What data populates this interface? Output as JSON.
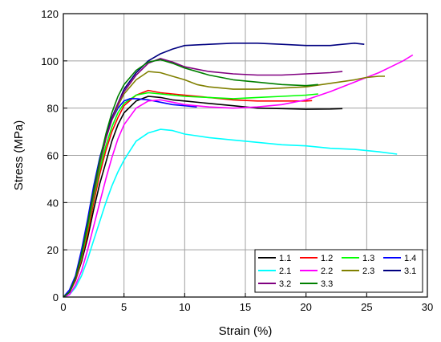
{
  "chart_data": {
    "type": "line",
    "title": "",
    "xlabel": "Strain (%)",
    "ylabel": "Stress (MPa)",
    "xlim": [
      0,
      30
    ],
    "ylim": [
      0,
      120
    ],
    "xticks": [
      0,
      5,
      10,
      15,
      20,
      25,
      30
    ],
    "yticks": [
      0,
      20,
      40,
      60,
      80,
      100,
      120
    ],
    "grid": true,
    "legend_position": "bottom-right",
    "series": [
      {
        "name": "1.1",
        "color": "#000000",
        "points": [
          [
            0,
            0
          ],
          [
            0.5,
            2
          ],
          [
            1,
            7
          ],
          [
            1.5,
            15
          ],
          [
            2,
            25
          ],
          [
            2.5,
            37
          ],
          [
            3,
            48
          ],
          [
            3.5,
            57
          ],
          [
            4,
            66
          ],
          [
            4.5,
            73
          ],
          [
            5,
            78
          ],
          [
            6,
            83
          ],
          [
            7,
            85
          ],
          [
            8,
            84.5
          ],
          [
            9,
            83.5
          ],
          [
            10,
            83
          ],
          [
            12,
            82
          ],
          [
            14,
            81
          ],
          [
            16,
            80
          ],
          [
            18,
            79.8
          ],
          [
            20,
            79.5
          ],
          [
            22,
            79.6
          ],
          [
            23,
            79.8
          ]
        ]
      },
      {
        "name": "1.2",
        "color": "#ff0000",
        "points": [
          [
            0,
            0
          ],
          [
            0.5,
            2
          ],
          [
            1,
            7
          ],
          [
            1.5,
            16
          ],
          [
            2,
            27
          ],
          [
            2.5,
            40
          ],
          [
            3,
            52
          ],
          [
            3.5,
            62
          ],
          [
            4,
            70
          ],
          [
            4.5,
            76
          ],
          [
            5,
            81
          ],
          [
            6,
            85.5
          ],
          [
            7,
            87.5
          ],
          [
            8,
            86.5
          ],
          [
            9,
            86
          ],
          [
            10,
            85.5
          ],
          [
            12,
            84.5
          ],
          [
            14,
            83.5
          ],
          [
            16,
            83
          ],
          [
            18,
            83
          ],
          [
            20,
            83
          ],
          [
            20.5,
            83.2
          ]
        ]
      },
      {
        "name": "1.3",
        "color": "#00ff00",
        "points": [
          [
            0,
            0
          ],
          [
            0.5,
            2
          ],
          [
            1,
            8
          ],
          [
            1.5,
            17
          ],
          [
            2,
            29
          ],
          [
            2.5,
            42
          ],
          [
            3,
            54
          ],
          [
            3.5,
            64
          ],
          [
            4,
            72
          ],
          [
            4.5,
            78
          ],
          [
            5,
            82
          ],
          [
            6,
            85.5
          ],
          [
            7,
            86.5
          ],
          [
            8,
            86
          ],
          [
            9,
            85.5
          ],
          [
            10,
            85
          ],
          [
            12,
            84.5
          ],
          [
            14,
            84
          ],
          [
            16,
            84.5
          ],
          [
            18,
            85
          ],
          [
            20,
            85.5
          ],
          [
            21,
            86
          ]
        ]
      },
      {
        "name": "1.4",
        "color": "#0000ff",
        "points": [
          [
            0,
            0
          ],
          [
            0.5,
            3
          ],
          [
            1,
            9
          ],
          [
            1.5,
            20
          ],
          [
            2,
            33
          ],
          [
            2.5,
            47
          ],
          [
            3,
            59
          ],
          [
            3.5,
            68
          ],
          [
            4,
            75
          ],
          [
            4.5,
            80
          ],
          [
            5,
            83
          ],
          [
            5.5,
            84
          ],
          [
            6,
            84
          ],
          [
            7,
            83.5
          ],
          [
            8,
            82.5
          ],
          [
            9,
            81.5
          ],
          [
            10,
            81
          ],
          [
            11,
            80.5
          ]
        ]
      },
      {
        "name": "2.1",
        "color": "#00ffff",
        "points": [
          [
            0,
            0
          ],
          [
            0.5,
            1
          ],
          [
            1,
            4
          ],
          [
            1.5,
            9
          ],
          [
            2,
            16
          ],
          [
            2.5,
            24
          ],
          [
            3,
            32
          ],
          [
            3.5,
            40
          ],
          [
            4,
            47
          ],
          [
            4.5,
            53
          ],
          [
            5,
            58
          ],
          [
            5.5,
            62
          ],
          [
            6,
            66
          ],
          [
            7,
            69.5
          ],
          [
            8,
            71
          ],
          [
            9,
            70.5
          ],
          [
            10,
            69
          ],
          [
            12,
            67.5
          ],
          [
            14,
            66.5
          ],
          [
            16,
            65.5
          ],
          [
            18,
            64.5
          ],
          [
            20,
            64
          ],
          [
            22,
            63
          ],
          [
            24,
            62.5
          ],
          [
            26,
            61.5
          ],
          [
            27.5,
            60.5
          ]
        ]
      },
      {
        "name": "2.2",
        "color": "#ff00ff",
        "points": [
          [
            0,
            0
          ],
          [
            0.5,
            1
          ],
          [
            1,
            5
          ],
          [
            1.5,
            11
          ],
          [
            2,
            20
          ],
          [
            2.5,
            30
          ],
          [
            3,
            40
          ],
          [
            3.5,
            50
          ],
          [
            4,
            59
          ],
          [
            4.5,
            67
          ],
          [
            5,
            73
          ],
          [
            6,
            80
          ],
          [
            7,
            83
          ],
          [
            8,
            83.5
          ],
          [
            9,
            82.5
          ],
          [
            10,
            81.5
          ],
          [
            12,
            80.5
          ],
          [
            14,
            80
          ],
          [
            16,
            80.5
          ],
          [
            18,
            81.5
          ],
          [
            20,
            83.5
          ],
          [
            22,
            87
          ],
          [
            24,
            91
          ],
          [
            26,
            95
          ],
          [
            27,
            97.5
          ],
          [
            28,
            100
          ],
          [
            28.8,
            102.5
          ]
        ]
      },
      {
        "name": "2.3",
        "color": "#808000",
        "points": [
          [
            0,
            0
          ],
          [
            0.5,
            2
          ],
          [
            1,
            8
          ],
          [
            1.5,
            18
          ],
          [
            2,
            30
          ],
          [
            2.5,
            43
          ],
          [
            3,
            56
          ],
          [
            3.5,
            67
          ],
          [
            4,
            75
          ],
          [
            4.5,
            81
          ],
          [
            5,
            86
          ],
          [
            6,
            92
          ],
          [
            7,
            95.5
          ],
          [
            8,
            95
          ],
          [
            9,
            93.5
          ],
          [
            10,
            92
          ],
          [
            11,
            90
          ],
          [
            12,
            89
          ],
          [
            14,
            88
          ],
          [
            16,
            88
          ],
          [
            18,
            88.5
          ],
          [
            20,
            89
          ],
          [
            22,
            90.5
          ],
          [
            24,
            92
          ],
          [
            25,
            93
          ],
          [
            26,
            93.5
          ],
          [
            26.5,
            93.5
          ]
        ]
      },
      {
        "name": "3.1",
        "color": "#000080",
        "points": [
          [
            0,
            0
          ],
          [
            0.5,
            2
          ],
          [
            1,
            8
          ],
          [
            1.5,
            18
          ],
          [
            2,
            31
          ],
          [
            2.5,
            45
          ],
          [
            3,
            58
          ],
          [
            3.5,
            68
          ],
          [
            4,
            76
          ],
          [
            4.5,
            82
          ],
          [
            5,
            88
          ],
          [
            6,
            95
          ],
          [
            7,
            100
          ],
          [
            8,
            103
          ],
          [
            9,
            105
          ],
          [
            10,
            106.5
          ],
          [
            12,
            107
          ],
          [
            14,
            107.5
          ],
          [
            16,
            107.5
          ],
          [
            18,
            107
          ],
          [
            20,
            106.5
          ],
          [
            22,
            106.5
          ],
          [
            23,
            107
          ],
          [
            24,
            107.5
          ],
          [
            24.8,
            107
          ]
        ]
      },
      {
        "name": "3.2",
        "color": "#800080",
        "points": [
          [
            0,
            0
          ],
          [
            0.5,
            2
          ],
          [
            1,
            8
          ],
          [
            1.5,
            18
          ],
          [
            2,
            31
          ],
          [
            2.5,
            44
          ],
          [
            3,
            57
          ],
          [
            3.5,
            67
          ],
          [
            4,
            75
          ],
          [
            4.5,
            82
          ],
          [
            5,
            87
          ],
          [
            6,
            94
          ],
          [
            7,
            99
          ],
          [
            8,
            101
          ],
          [
            9,
            99.5
          ],
          [
            10,
            97.5
          ],
          [
            12,
            95.5
          ],
          [
            14,
            94.5
          ],
          [
            16,
            94
          ],
          [
            18,
            94
          ],
          [
            20,
            94.5
          ],
          [
            22,
            95
          ],
          [
            23,
            95.5
          ]
        ]
      },
      {
        "name": "3.3",
        "color": "#008000",
        "points": [
          [
            0,
            0
          ],
          [
            0.5,
            2
          ],
          [
            1,
            8
          ],
          [
            1.5,
            18
          ],
          [
            2,
            31
          ],
          [
            2.5,
            45
          ],
          [
            3,
            58
          ],
          [
            3.5,
            69
          ],
          [
            4,
            78
          ],
          [
            4.5,
            85
          ],
          [
            5,
            90
          ],
          [
            6,
            96
          ],
          [
            7,
            99.5
          ],
          [
            8,
            100.5
          ],
          [
            9,
            99
          ],
          [
            10,
            97
          ],
          [
            12,
            94
          ],
          [
            14,
            92
          ],
          [
            16,
            91
          ],
          [
            18,
            90
          ],
          [
            20,
            89.5
          ],
          [
            21,
            90
          ]
        ]
      }
    ]
  }
}
